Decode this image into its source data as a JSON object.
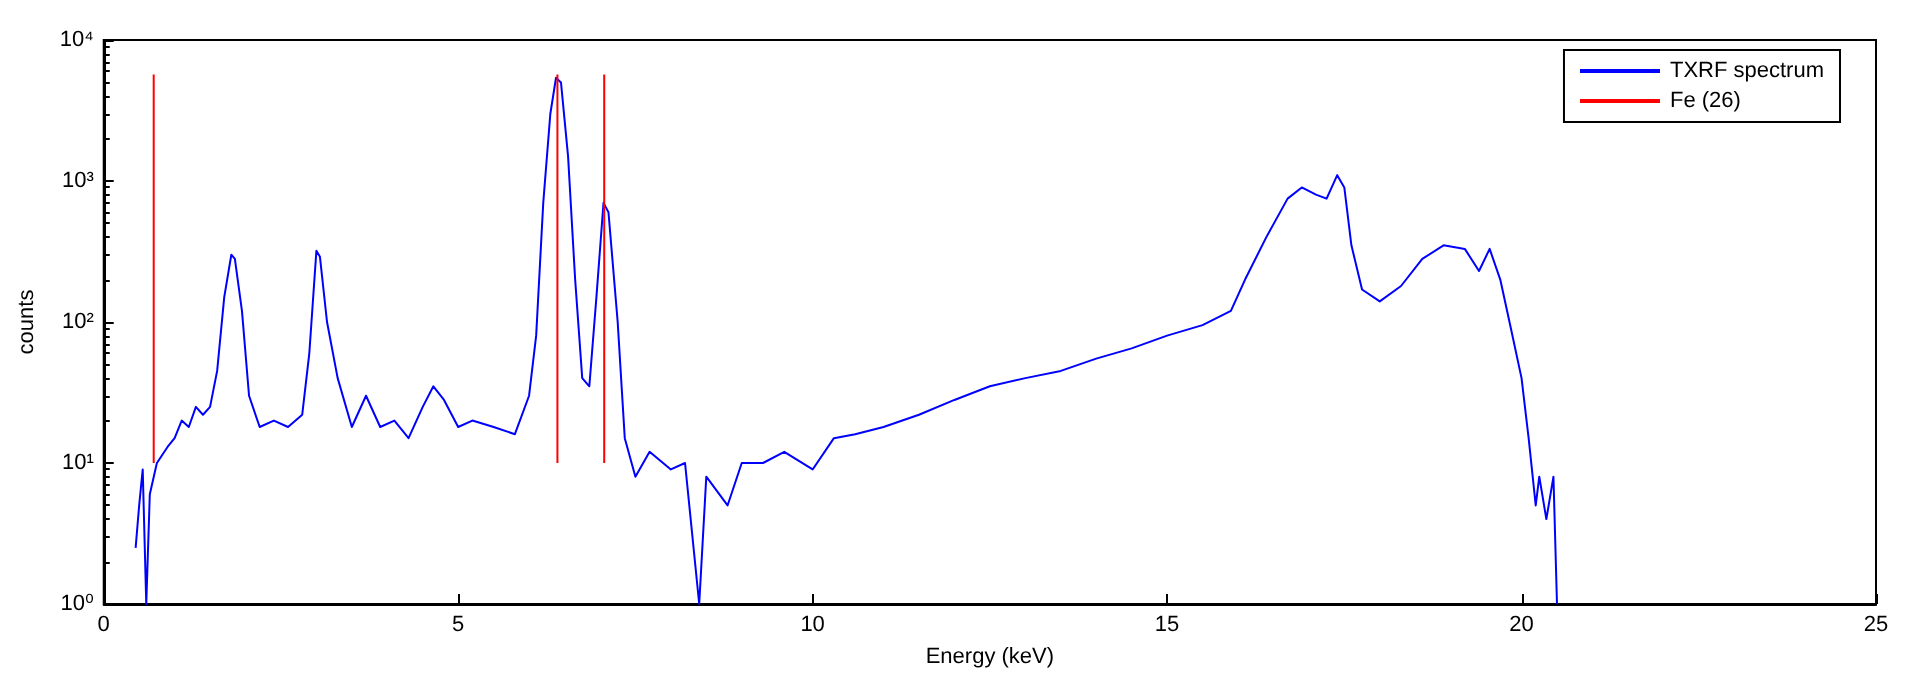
{
  "chart_data": {
    "type": "line",
    "xlabel": "Energy (keV)",
    "ylabel": "counts",
    "log": "y",
    "grid": false,
    "legend": "top right",
    "marker": "none",
    "line_style": "solid",
    "xlim": [
      0,
      25
    ],
    "xticks": [
      0,
      5,
      10,
      15,
      20,
      25
    ],
    "ylim": [
      1,
      10000
    ],
    "yticks": [
      {
        "value": 1,
        "label": "10⁰"
      },
      {
        "value": 10,
        "label": "10¹"
      },
      {
        "value": 100,
        "label": "10²"
      },
      {
        "value": 1000,
        "label": "10³"
      },
      {
        "value": 10000,
        "label": "10⁴"
      }
    ],
    "series": [
      {
        "name": "TXRF spectrum",
        "color": "#0000ff",
        "x": [
          0.45,
          0.5,
          0.55,
          0.6,
          0.65,
          0.75,
          0.9,
          1.0,
          1.1,
          1.2,
          1.3,
          1.4,
          1.5,
          1.6,
          1.7,
          1.8,
          1.85,
          1.95,
          2.05,
          2.2,
          2.4,
          2.6,
          2.8,
          2.9,
          3.0,
          3.05,
          3.15,
          3.3,
          3.5,
          3.7,
          3.9,
          4.1,
          4.3,
          4.5,
          4.65,
          4.8,
          5.0,
          5.2,
          5.5,
          5.8,
          6.0,
          6.1,
          6.2,
          6.3,
          6.38,
          6.45,
          6.55,
          6.65,
          6.75,
          6.85,
          6.95,
          7.05,
          7.12,
          7.25,
          7.35,
          7.5,
          7.7,
          8.0,
          8.2,
          8.4,
          8.5,
          8.8,
          9.0,
          9.3,
          9.6,
          10.0,
          10.3,
          10.6,
          11.0,
          11.5,
          12.0,
          12.5,
          13.0,
          13.5,
          14.0,
          14.5,
          15.0,
          15.5,
          15.9,
          16.1,
          16.4,
          16.7,
          16.9,
          17.1,
          17.25,
          17.4,
          17.5,
          17.6,
          17.75,
          18.0,
          18.3,
          18.6,
          18.9,
          19.2,
          19.4,
          19.55,
          19.7,
          19.85,
          20.0,
          20.1,
          20.2,
          20.25,
          20.35,
          20.45,
          20.5
        ],
        "values": [
          2.5,
          5,
          9,
          1,
          6,
          10,
          13,
          15,
          20,
          18,
          25,
          22,
          25,
          45,
          150,
          300,
          280,
          120,
          30,
          18,
          20,
          18,
          22,
          60,
          320,
          290,
          100,
          40,
          18,
          30,
          18,
          20,
          15,
          25,
          35,
          28,
          18,
          20,
          18,
          16,
          30,
          80,
          700,
          3000,
          5400,
          5000,
          1500,
          200,
          40,
          35,
          150,
          700,
          600,
          100,
          15,
          8,
          12,
          9,
          10,
          1,
          8,
          5,
          10,
          10,
          12,
          9,
          15,
          16,
          18,
          22,
          28,
          35,
          40,
          45,
          55,
          65,
          80,
          95,
          120,
          200,
          400,
          750,
          900,
          800,
          750,
          1100,
          900,
          350,
          170,
          140,
          180,
          280,
          350,
          330,
          230,
          330,
          200,
          90,
          40,
          15,
          5,
          8,
          4,
          8,
          1
        ]
      },
      {
        "name": "Fe (26)",
        "color": "#ff0000",
        "x": [
          0.705,
          0.705,
          null,
          6.4,
          6.4,
          null,
          7.06,
          7.06
        ],
        "values": [
          10,
          5700,
          null,
          10,
          5700,
          null,
          10,
          5700
        ]
      }
    ]
  }
}
